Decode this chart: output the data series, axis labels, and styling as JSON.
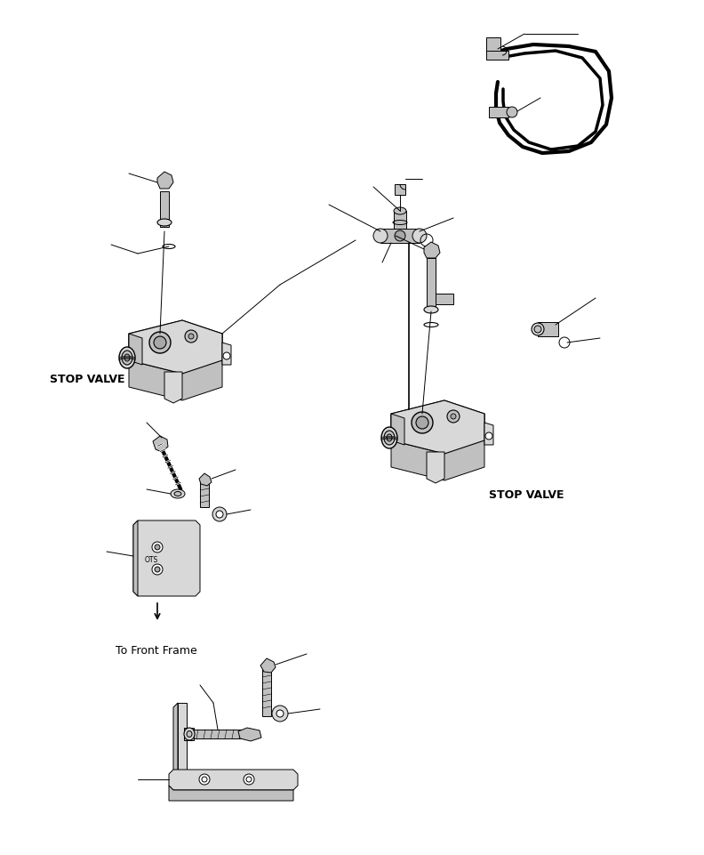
{
  "figure_width": 7.92,
  "figure_height": 9.61,
  "dpi": 100,
  "bg_color": "#ffffff",
  "stop_valve_label_1": "STOP VALVE",
  "stop_valve_label_2": "STOP VALVE",
  "to_front_frame_label": "To Front Frame",
  "lc": "#000000",
  "lw": 0.7,
  "gray1": "#d8d8d8",
  "gray2": "#c0c0c0",
  "gray3": "#a8a8a8",
  "gray4": "#888888"
}
